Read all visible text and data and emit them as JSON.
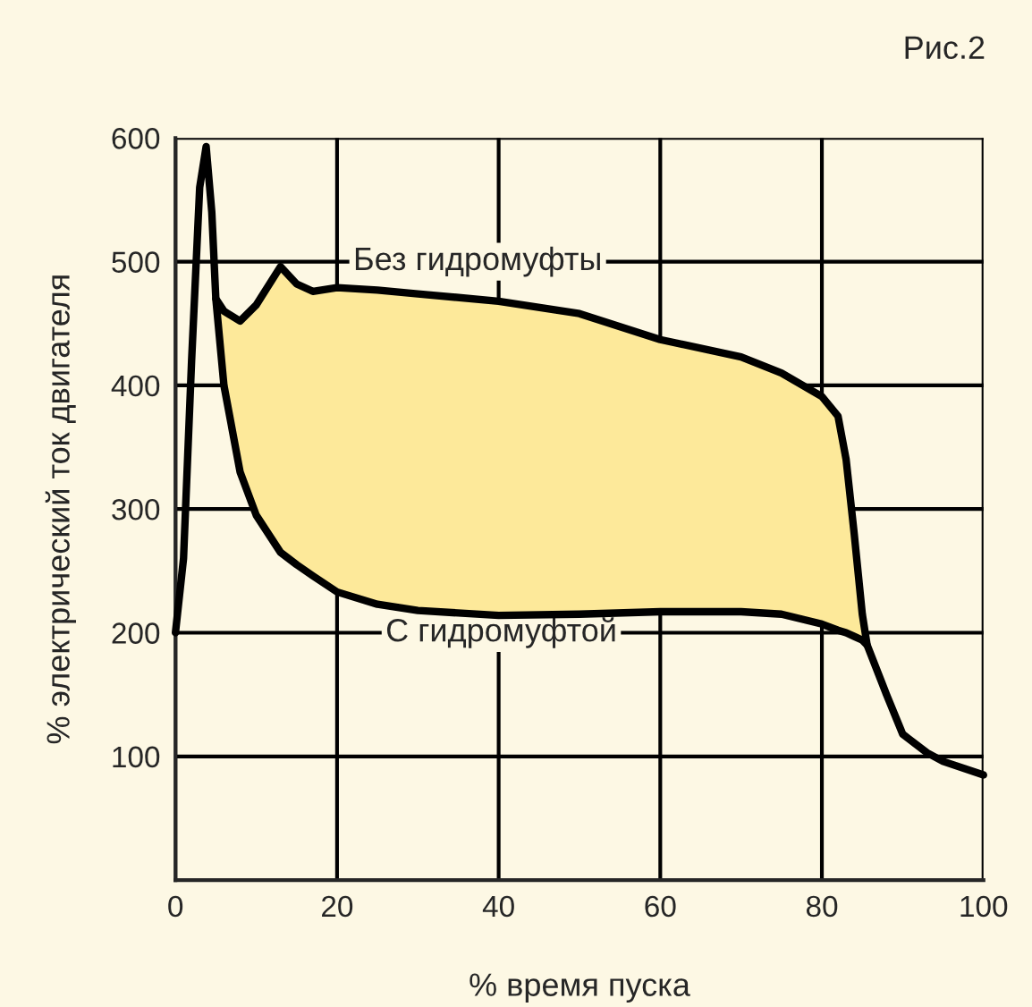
{
  "chart_data": {
    "type": "line",
    "title": "Рис.2",
    "xlabel": "% время пуска",
    "ylabel": "% электрический ток двигателя",
    "x": [
      0,
      1,
      2,
      3,
      3.8,
      4.5,
      5,
      6,
      8,
      10,
      13,
      15,
      17,
      20,
      25,
      30,
      40,
      50,
      60,
      70,
      75,
      80,
      82,
      83,
      84,
      85,
      85.6,
      88,
      90,
      93,
      95,
      100
    ],
    "series": [
      {
        "type": "line",
        "name": "Без гидромуфты",
        "color": "#000000",
        "values": [
          200,
          260,
          420,
          560,
          593,
          540,
          470,
          460,
          452,
          465,
          496,
          482,
          476,
          479,
          477,
          474,
          468,
          458,
          437,
          423,
          410,
          391,
          375,
          340,
          280,
          215,
          190,
          150,
          118,
          103,
          96,
          85
        ]
      },
      {
        "type": "line",
        "name": "С гидромуфтой",
        "color": "#000000",
        "x": [
          5,
          6,
          8,
          10,
          13,
          15,
          17,
          20,
          25,
          30,
          40,
          50,
          60,
          70,
          75,
          80,
          82,
          83,
          84,
          85,
          85.6
        ],
        "values": [
          470,
          400,
          330,
          295,
          265,
          255,
          246,
          233,
          223,
          218,
          214,
          215,
          217,
          217,
          215,
          207,
          202,
          200,
          197,
          194,
          190
        ]
      }
    ],
    "xlim": [
      0,
      100
    ],
    "xticks": [
      0,
      20,
      40,
      60,
      80,
      100
    ],
    "ylim": [
      0,
      600
    ],
    "yticks": [
      100,
      200,
      300,
      400,
      500,
      600
    ],
    "grid": true,
    "legend": false,
    "line_style": "solid",
    "marker": "none"
  }
}
